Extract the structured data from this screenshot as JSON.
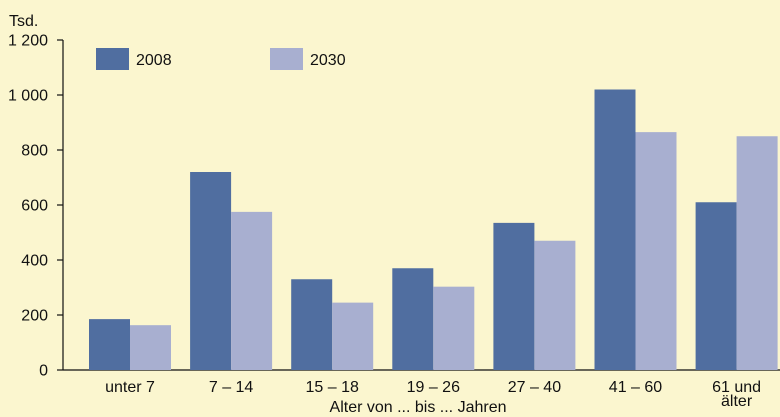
{
  "chart_data": {
    "type": "bar",
    "unit_label": "Tsd.",
    "xlabel": "Alter von ... bis ... Jahren",
    "ylabel": "",
    "ylim": [
      0,
      1200
    ],
    "yticks": [
      0,
      200,
      400,
      600,
      800,
      1000,
      1200
    ],
    "ytick_labels": [
      "0",
      "200",
      "400",
      "600",
      "800",
      "1 000",
      "1 200"
    ],
    "categories": [
      [
        "unter 7"
      ],
      [
        "7 – 14"
      ],
      [
        "15 – 18"
      ],
      [
        "19 – 26"
      ],
      [
        "27 – 40"
      ],
      [
        "41 – 60"
      ],
      [
        "61 und",
        "älter"
      ]
    ],
    "series": [
      {
        "name": "2008",
        "color": "#506ea0",
        "values": [
          185,
          720,
          330,
          370,
          535,
          1020,
          610
        ]
      },
      {
        "name": "2030",
        "color": "#a8afd0",
        "values": [
          163,
          575,
          245,
          303,
          470,
          865,
          850
        ]
      }
    ],
    "grid": false,
    "legend_position": "top-left"
  }
}
